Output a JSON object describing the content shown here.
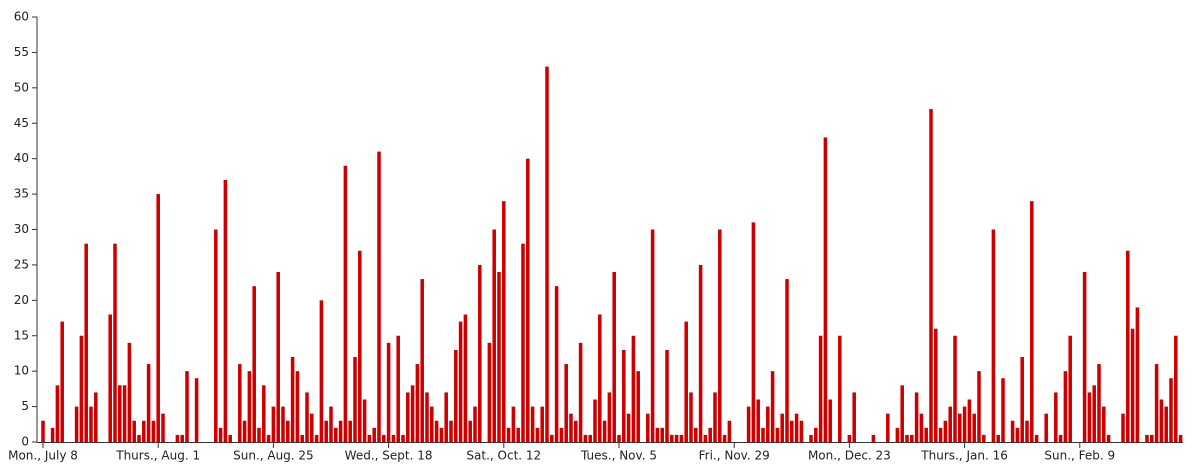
{
  "chart_data": {
    "type": "bar",
    "categories": [
      "Mon., July 8",
      null,
      null,
      null,
      null,
      null,
      null,
      null,
      null,
      null,
      null,
      null,
      null,
      null,
      null,
      null,
      null,
      null,
      null,
      null,
      null,
      null,
      null,
      null,
      "Thurs., Aug. 1",
      null,
      null,
      null,
      null,
      null,
      null,
      null,
      null,
      null,
      null,
      null,
      null,
      null,
      null,
      null,
      null,
      null,
      null,
      null,
      null,
      null,
      null,
      null,
      "Sun., Aug. 25",
      null,
      null,
      null,
      null,
      null,
      null,
      null,
      null,
      null,
      null,
      null,
      null,
      null,
      null,
      null,
      null,
      null,
      null,
      null,
      null,
      null,
      null,
      null,
      "Wed., Sept. 18",
      null,
      null,
      null,
      null,
      null,
      null,
      null,
      null,
      null,
      null,
      null,
      null,
      null,
      null,
      null,
      null,
      null,
      null,
      null,
      null,
      null,
      null,
      null,
      "Sat., Oct. 12",
      null,
      null,
      null,
      null,
      null,
      null,
      null,
      null,
      null,
      null,
      null,
      null,
      null,
      null,
      null,
      null,
      null,
      null,
      null,
      null,
      null,
      null,
      null,
      "Tues., Nov. 5",
      null,
      null,
      null,
      null,
      null,
      null,
      null,
      null,
      null,
      null,
      null,
      null,
      null,
      null,
      null,
      null,
      null,
      null,
      null,
      null,
      null,
      null,
      null,
      "Fri., Nov. 29",
      null,
      null,
      null,
      null,
      null,
      null,
      null,
      null,
      null,
      null,
      null,
      null,
      null,
      null,
      null,
      null,
      null,
      null,
      null,
      null,
      null,
      null,
      null,
      "Mon., Dec. 23",
      null,
      null,
      null,
      null,
      null,
      null,
      null,
      null,
      null,
      null,
      null,
      null,
      null,
      null,
      null,
      null,
      null,
      null,
      null,
      null,
      null,
      null,
      null,
      "Thurs., Jan. 16",
      null,
      null,
      null,
      null,
      null,
      null,
      null,
      null,
      null,
      null,
      null,
      null,
      null,
      null,
      null,
      null,
      null,
      null,
      null,
      null,
      null,
      null,
      null,
      "Sun., Feb. 9",
      null,
      null,
      null,
      null,
      null,
      null,
      null,
      null,
      null,
      null,
      null,
      null,
      null,
      null,
      null,
      null,
      null,
      null,
      null,
      null,
      null
    ],
    "values": [
      3,
      0,
      2,
      8,
      17,
      0,
      0,
      5,
      15,
      28,
      5,
      7,
      0,
      0,
      18,
      28,
      8,
      8,
      14,
      3,
      1,
      3,
      11,
      3,
      35,
      4,
      0,
      0,
      1,
      1,
      10,
      0,
      9,
      0,
      0,
      0,
      30,
      2,
      37,
      1,
      0,
      11,
      3,
      10,
      22,
      2,
      8,
      1,
      5,
      24,
      5,
      3,
      12,
      10,
      1,
      7,
      4,
      1,
      20,
      3,
      5,
      2,
      3,
      39,
      3,
      12,
      27,
      6,
      1,
      2,
      41,
      1,
      14,
      1,
      15,
      1,
      7,
      8,
      11,
      23,
      7,
      5,
      3,
      2,
      7,
      3,
      13,
      17,
      18,
      3,
      5,
      25,
      0,
      14,
      30,
      24,
      34,
      2,
      5,
      2,
      28,
      40,
      5,
      2,
      5,
      53,
      1,
      22,
      2,
      11,
      4,
      3,
      14,
      1,
      1,
      6,
      18,
      3,
      7,
      24,
      1,
      13,
      4,
      15,
      10,
      0,
      4,
      30,
      2,
      2,
      13,
      1,
      1,
      1,
      17,
      7,
      2,
      25,
      1,
      2,
      7,
      30,
      1,
      3,
      0,
      0,
      0,
      5,
      31,
      6,
      2,
      5,
      10,
      2,
      4,
      23,
      3,
      4,
      3,
      0,
      1,
      2,
      15,
      43,
      6,
      0,
      15,
      0,
      1,
      7,
      0,
      0,
      0,
      1,
      0,
      0,
      4,
      0,
      2,
      8,
      1,
      1,
      7,
      4,
      2,
      47,
      16,
      2,
      3,
      5,
      15,
      4,
      5,
      6,
      4,
      10,
      1,
      0,
      30,
      1,
      9,
      0,
      3,
      2,
      12,
      3,
      34,
      1,
      0,
      4,
      0,
      7,
      1,
      10,
      15,
      0,
      0,
      24,
      7,
      8,
      11,
      5,
      1,
      0,
      0,
      4,
      27,
      16,
      19,
      0,
      1,
      1,
      11,
      6,
      5,
      9,
      15,
      1
    ],
    "color": "#cc0000",
    "ylim": [
      0,
      60
    ],
    "yticks": [
      0,
      5,
      10,
      15,
      20,
      25,
      30,
      35,
      40,
      45,
      50,
      55,
      60
    ],
    "grid": false
  }
}
